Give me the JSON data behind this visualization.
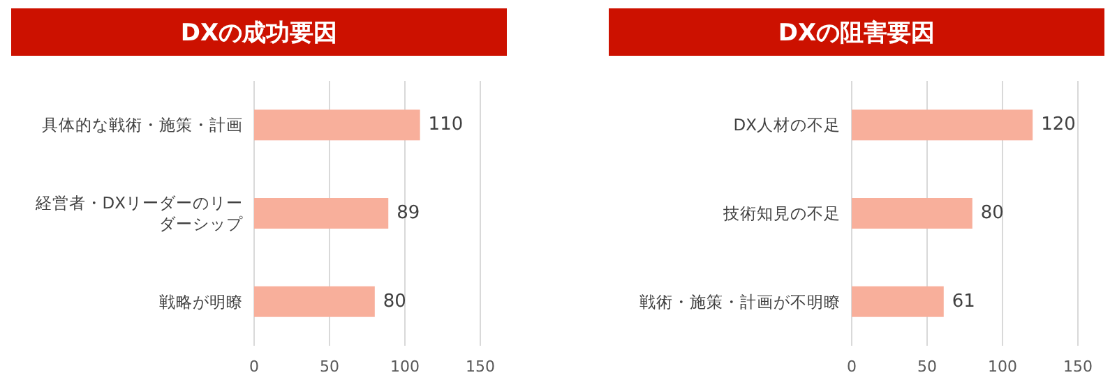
{
  "chart_data": [
    {
      "type": "bar",
      "orientation": "horizontal",
      "title": "DXの成功要因",
      "categories": [
        "具体的な戦術・施策・計画",
        "経営者・DXリーダーのリーダーシップ",
        "戦略が明瞭"
      ],
      "values": [
        110,
        89,
        80
      ],
      "color": "#f8af9b",
      "xlim": [
        0,
        150
      ],
      "xticks": [
        0,
        50,
        100,
        150
      ],
      "grid": "x",
      "data_labels": true
    },
    {
      "type": "bar",
      "orientation": "horizontal",
      "title": "DXの阻害要因",
      "categories": [
        "DX人材の不足",
        "技術知見の不足",
        "戦術・施策・計画が不明瞭"
      ],
      "values": [
        120,
        80,
        61
      ],
      "color": "#f8af9b",
      "xlim": [
        0,
        150
      ],
      "xticks": [
        0,
        50,
        100,
        150
      ],
      "grid": "x",
      "data_labels": true
    }
  ]
}
